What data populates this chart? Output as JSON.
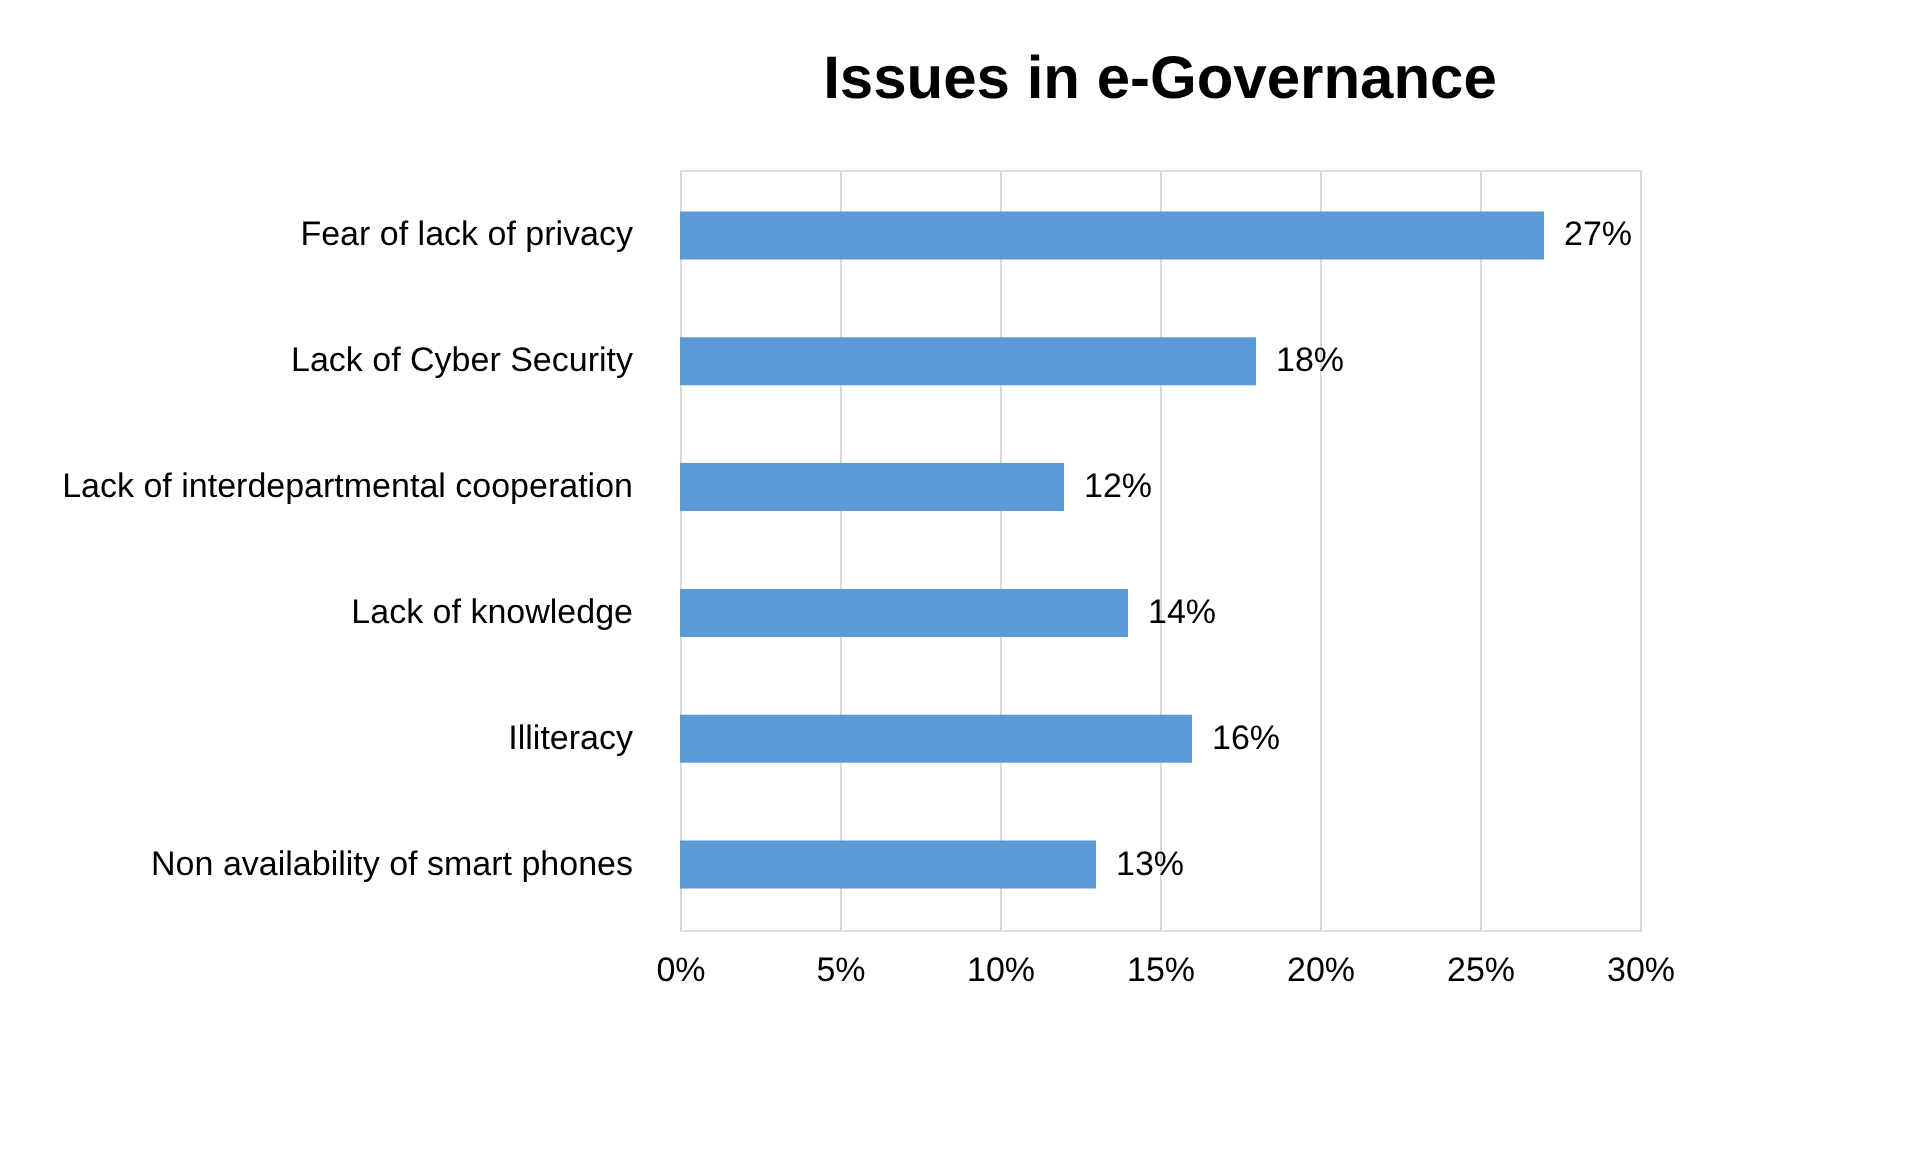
{
  "chart_data": {
    "type": "bar",
    "orientation": "horizontal",
    "title": "Issues in e-Governance",
    "categories": [
      "Fear of lack of privacy",
      "Lack of Cyber Security",
      "Lack of interdepartmental cooperation",
      "Lack of knowledge",
      "Illiteracy",
      "Non availability of smart phones"
    ],
    "values": [
      27,
      18,
      12,
      14,
      16,
      13
    ],
    "value_labels": [
      "27%",
      "18%",
      "12%",
      "14%",
      "16%",
      "13%"
    ],
    "color": "#5b9bd5",
    "xlim": [
      0,
      30
    ],
    "xticks": [
      {
        "value": 0,
        "label": "0%"
      },
      {
        "value": 5,
        "label": "5%"
      },
      {
        "value": 10,
        "label": "10%"
      },
      {
        "value": 15,
        "label": "15%"
      },
      {
        "value": 20,
        "label": "20%"
      },
      {
        "value": 25,
        "label": "25%"
      },
      {
        "value": 30,
        "label": "30%"
      }
    ],
    "grid": "x"
  }
}
